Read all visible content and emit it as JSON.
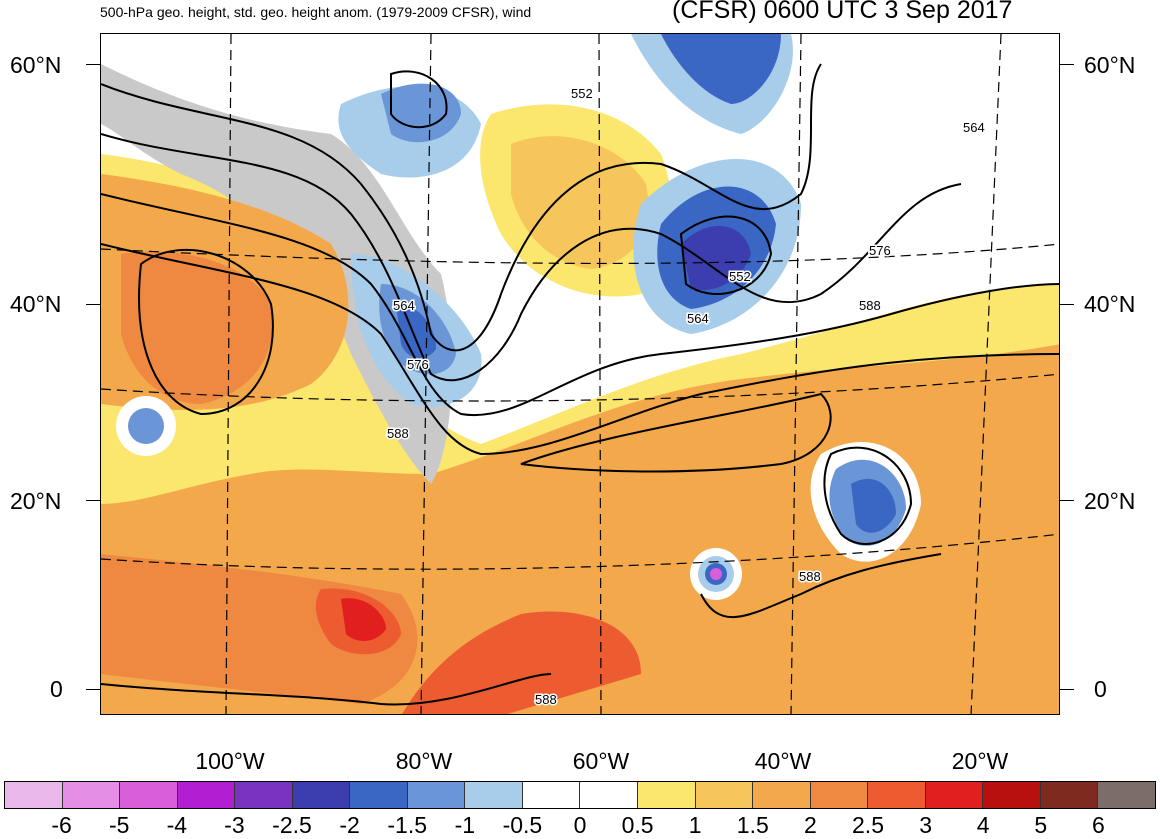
{
  "header": {
    "subtitle": "500-hPa geo. height, std. geo. height anom. (1979-2009 CFSR), wind",
    "title": "(CFSR) 0600 UTC 3 Sep 2017"
  },
  "axes": {
    "lat_labels": [
      "60°N",
      "40°N",
      "20°N",
      "0"
    ],
    "lon_labels": [
      "100°W",
      "80°W",
      "60°W",
      "40°W",
      "20°W"
    ]
  },
  "contour_labels": [
    "552",
    "564",
    "552",
    "576",
    "564",
    "588",
    "564",
    "576",
    "588",
    "588",
    "588"
  ],
  "colorbar": {
    "labels": [
      "-6",
      "-5",
      "-4",
      "-3",
      "-2.5",
      "-2",
      "-1.5",
      "-1",
      "-0.5",
      "0",
      "0.5",
      "1",
      "1.5",
      "2",
      "2.5",
      "3",
      "4",
      "5",
      "6"
    ],
    "colors": [
      "#e9b7e9",
      "#e58ee5",
      "#d95ed9",
      "#b21ed2",
      "#7a32c1",
      "#3c3eb0",
      "#3a66c4",
      "#6a95d6",
      "#a7cdeb",
      "#ffffff",
      "#ffffff",
      "#fbe66e",
      "#f6c55b",
      "#f3a84b",
      "#ef8841",
      "#ed5b30",
      "#e21f1f",
      "#b80f0f",
      "#7e2a1f",
      "#7c6d6a"
    ]
  }
}
